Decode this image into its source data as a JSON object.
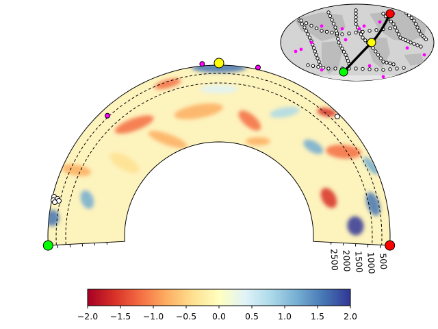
{
  "cross_section": {
    "depth_ticks": [
      "500",
      "1000",
      "1500",
      "2000",
      "2500"
    ],
    "markers": {
      "start_color": "#00ff00",
      "mid_color": "#ffff00",
      "end_color": "#ff0000",
      "plume_color": "#ff00ff",
      "volcano_color": "#ffffff"
    }
  },
  "colorbar": {
    "ticks": [
      "−2.0",
      "−1.5",
      "−1.0",
      "−0.5",
      "0.0",
      "0.5",
      "1.0",
      "1.5",
      "2.0"
    ],
    "tick_values": [
      -2.0,
      -1.5,
      -1.0,
      -0.5,
      0.0,
      0.5,
      1.0,
      1.5,
      2.0
    ],
    "range": [
      -2.0,
      2.0
    ],
    "colormap": "RdYlBu"
  },
  "globe_map": {
    "projection": "mollweide",
    "ocean_color": "#d4d4d4",
    "land_color": "#bcbcbc",
    "path_color": "#000000"
  }
}
